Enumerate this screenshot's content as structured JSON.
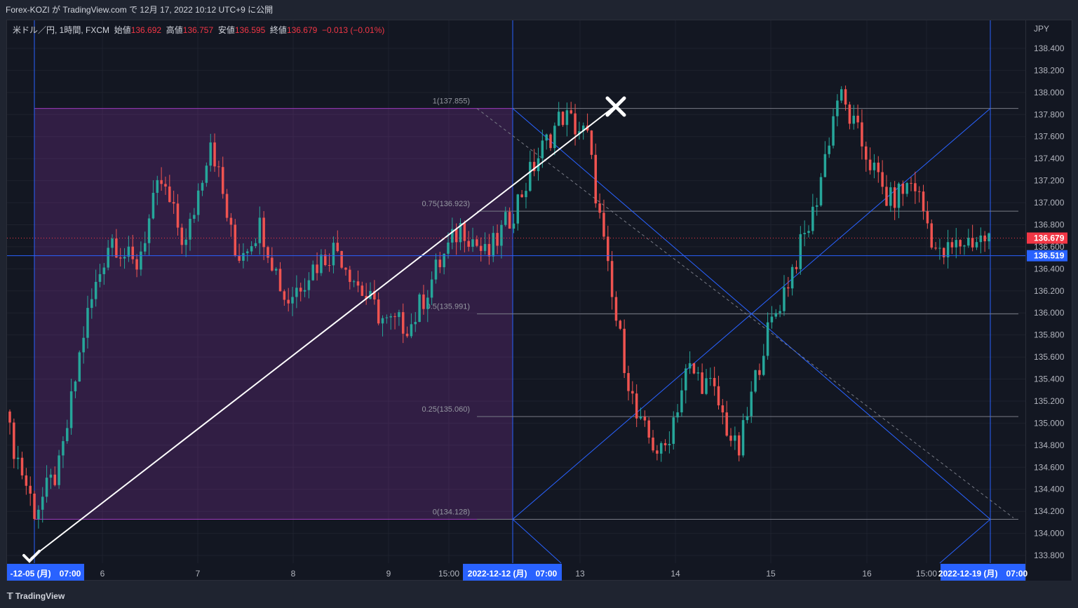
{
  "header": {
    "text": "Forex-KOZI が TradingView.com で 12月 17, 2022 10:12 UTC+9 に公開"
  },
  "legend": {
    "symbol": "米ドル／円, 1時間, FXCM",
    "open_label": "始値",
    "open": "136.692",
    "high_label": "高値",
    "high": "136.757",
    "low_label": "安値",
    "low": "136.595",
    "close_label": "終値",
    "close": "136.679",
    "change": "−0.013 (−0.01%)"
  },
  "footer": {
    "brand": "TradingView"
  },
  "chart_data": {
    "type": "candlestick",
    "currency_label": "JPY",
    "y_ticks": [
      "138.400",
      "138.200",
      "138.000",
      "137.800",
      "137.600",
      "137.400",
      "137.200",
      "137.000",
      "136.800",
      "136.600",
      "136.400",
      "136.200",
      "136.000",
      "135.800",
      "135.600",
      "135.400",
      "135.200",
      "135.000",
      "134.800",
      "134.600",
      "134.400",
      "134.200",
      "134.000",
      "133.800"
    ],
    "ylim": [
      133.75,
      138.55
    ],
    "x_ticks": [
      "6",
      "7",
      "8",
      "9",
      "15:00",
      "13",
      "14",
      "15",
      "16",
      "15:00"
    ],
    "x_highlight_labels": [
      "-12-05 (月)　07:00",
      "2022-12-12 (月)　07:00",
      "2022-12-19 (月)　07:00"
    ],
    "price_labels": {
      "last": "136.679",
      "line": "136.519"
    },
    "fib_levels": [
      {
        "label": "1(137.855)",
        "value": 137.855
      },
      {
        "label": "0.75(136.923)",
        "value": 136.923
      },
      {
        "label": "0.5(135.991)",
        "value": 135.991
      },
      {
        "label": "0.25(135.060)",
        "value": 135.06
      },
      {
        "label": "0(134.128)",
        "value": 134.128
      }
    ],
    "close_path": [
      134.9,
      134.2,
      134.6,
      135.9,
      136.7,
      136.4,
      137.2,
      136.6,
      137.6,
      136.5,
      136.8,
      136.1,
      136.4,
      136.6,
      136.2,
      135.9,
      135.9,
      136.4,
      136.8,
      136.5,
      136.9,
      137.4,
      137.8,
      137.6,
      136.1,
      135.0,
      134.7,
      135.5,
      135.3,
      134.7,
      135.7,
      136.3,
      136.9,
      138.0,
      137.5,
      137.0,
      137.2,
      136.5,
      136.65,
      136.68
    ],
    "colors": {
      "up": "#26a69a",
      "down": "#ef5350",
      "zone": "#a03dc0",
      "fib_line": "#787b86",
      "gann": "#2962ff",
      "trend": "#ffffff",
      "price_line": "#2962ff",
      "last_price": "#f23645"
    }
  }
}
